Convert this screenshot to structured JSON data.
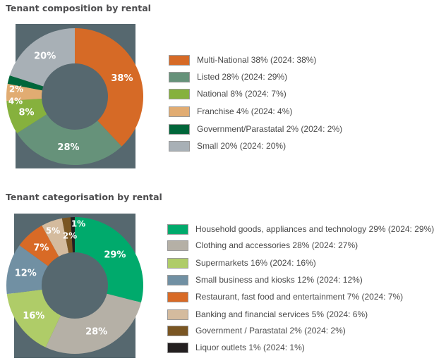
{
  "chart_data": [
    {
      "type": "pie",
      "title": "Tenant composition by rental",
      "categories": [
        "Multi-National",
        "Listed",
        "National",
        "Franchise",
        "Government/Parastatal",
        "Small"
      ],
      "values": [
        38,
        28,
        8,
        4,
        2,
        20
      ],
      "previous_values_2024": [
        38,
        29,
        7,
        4,
        2,
        20
      ],
      "labels": [
        "38%",
        "28%",
        "8%",
        "4%",
        "2%",
        "20%"
      ],
      "legend": [
        "Multi-National 38% (2024: 38%)",
        "Listed 28% (2024: 29%)",
        "National 8% (2024: 7%)",
        "Franchise 4% (2024: 4%)",
        "Government/Parastatal 2% (2024: 2%)",
        "Small 20% (2024: 20%)"
      ],
      "colors": [
        "#d66a26",
        "#66927a",
        "#86b13d",
        "#e1ac72",
        "#00663a",
        "#a8b0b6"
      ],
      "legend_placement": "right"
    },
    {
      "type": "pie",
      "title": "Tenant categorisation by rental",
      "categories": [
        "Household goods, appliances and technology",
        "Clothing and accessories",
        "Supermarkets",
        "Small business and kiosks",
        "Restaurant, fast food and entertainment",
        "Banking and financial services",
        "Government / Parastatal",
        "Liquor outlets"
      ],
      "values": [
        29,
        28,
        16,
        12,
        7,
        5,
        2,
        1
      ],
      "previous_values_2024": [
        29,
        27,
        16,
        12,
        7,
        6,
        2,
        1
      ],
      "labels": [
        "29%",
        "28%",
        "16%",
        "12%",
        "7%",
        "5%",
        "2%",
        "1%"
      ],
      "legend": [
        "Household goods, appliances and technology 29% (2024: 29%)",
        "Clothing and accessories 28% (2024: 27%)",
        "Supermarkets 16% (2024: 16%)",
        "Small business and kiosks 12% (2024: 12%)",
        "Restaurant, fast food and entertainment 7% (2024: 7%)",
        "Banking and financial services 5% (2024: 6%)",
        "Government / Parastatal 2% (2024: 2%)",
        "Liquor outlets 1% (2024: 1%)"
      ],
      "colors": [
        "#00aa6c",
        "#b5b0a6",
        "#afcc68",
        "#7190a3",
        "#d86a26",
        "#d4bb9e",
        "#7a5623",
        "#231f20"
      ],
      "legend_placement": "right"
    }
  ]
}
